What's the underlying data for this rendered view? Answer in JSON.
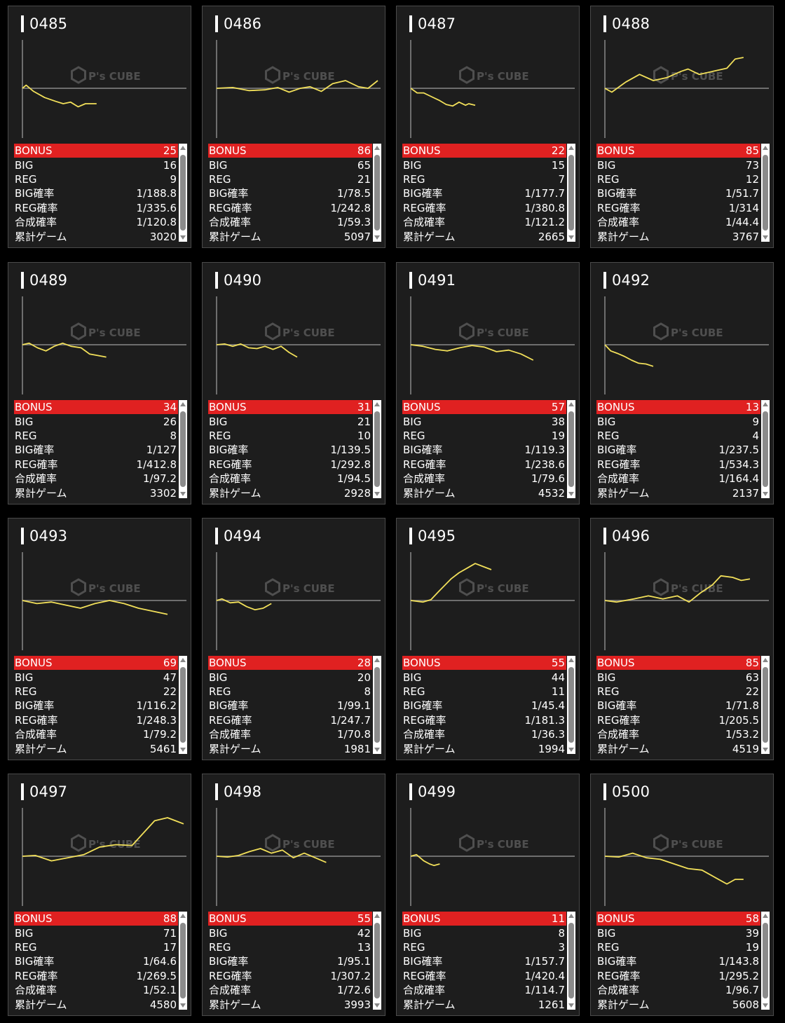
{
  "labels": {
    "bonus": "BONUS",
    "big": "BIG",
    "reg": "REG",
    "big_rate": "BIG確率",
    "reg_rate": "REG確率",
    "combined_rate": "合成確率",
    "total_games": "累計ゲーム"
  },
  "watermark": {
    "brand": "P's CUBE"
  },
  "colors": {
    "line": "#f2e05a",
    "bonus_bar": "#e02121",
    "panel": "#1d1d1d",
    "axis": "#888888"
  },
  "machines": [
    {
      "id": "0485",
      "bonus": "25",
      "big": "16",
      "reg": "9",
      "big_rate": "1/188.8",
      "reg_rate": "1/335.6",
      "combined_rate": "1/120.8",
      "total_games": "3020"
    },
    {
      "id": "0486",
      "bonus": "86",
      "big": "65",
      "reg": "21",
      "big_rate": "1/78.5",
      "reg_rate": "1/242.8",
      "combined_rate": "1/59.3",
      "total_games": "5097"
    },
    {
      "id": "0487",
      "bonus": "22",
      "big": "15",
      "reg": "7",
      "big_rate": "1/177.7",
      "reg_rate": "1/380.8",
      "combined_rate": "1/121.2",
      "total_games": "2665"
    },
    {
      "id": "0488",
      "bonus": "85",
      "big": "73",
      "reg": "12",
      "big_rate": "1/51.7",
      "reg_rate": "1/314",
      "combined_rate": "1/44.4",
      "total_games": "3767"
    },
    {
      "id": "0489",
      "bonus": "34",
      "big": "26",
      "reg": "8",
      "big_rate": "1/127",
      "reg_rate": "1/412.8",
      "combined_rate": "1/97.2",
      "total_games": "3302"
    },
    {
      "id": "0490",
      "bonus": "31",
      "big": "21",
      "reg": "10",
      "big_rate": "1/139.5",
      "reg_rate": "1/292.8",
      "combined_rate": "1/94.5",
      "total_games": "2928"
    },
    {
      "id": "0491",
      "bonus": "57",
      "big": "38",
      "reg": "19",
      "big_rate": "1/119.3",
      "reg_rate": "1/238.6",
      "combined_rate": "1/79.6",
      "total_games": "4532"
    },
    {
      "id": "0492",
      "bonus": "13",
      "big": "9",
      "reg": "4",
      "big_rate": "1/237.5",
      "reg_rate": "1/534.3",
      "combined_rate": "1/164.4",
      "total_games": "2137"
    },
    {
      "id": "0493",
      "bonus": "69",
      "big": "47",
      "reg": "22",
      "big_rate": "1/116.2",
      "reg_rate": "1/248.3",
      "combined_rate": "1/79.2",
      "total_games": "5461"
    },
    {
      "id": "0494",
      "bonus": "28",
      "big": "20",
      "reg": "8",
      "big_rate": "1/99.1",
      "reg_rate": "1/247.7",
      "combined_rate": "1/70.8",
      "total_games": "1981"
    },
    {
      "id": "0495",
      "bonus": "55",
      "big": "44",
      "reg": "11",
      "big_rate": "1/45.4",
      "reg_rate": "1/181.3",
      "combined_rate": "1/36.3",
      "total_games": "1994"
    },
    {
      "id": "0496",
      "bonus": "85",
      "big": "63",
      "reg": "22",
      "big_rate": "1/71.8",
      "reg_rate": "1/205.5",
      "combined_rate": "1/53.2",
      "total_games": "4519"
    },
    {
      "id": "0497",
      "bonus": "88",
      "big": "71",
      "reg": "17",
      "big_rate": "1/64.6",
      "reg_rate": "1/269.5",
      "combined_rate": "1/52.1",
      "total_games": "4580"
    },
    {
      "id": "0498",
      "bonus": "55",
      "big": "42",
      "reg": "13",
      "big_rate": "1/95.1",
      "reg_rate": "1/307.2",
      "combined_rate": "1/72.6",
      "total_games": "3993"
    },
    {
      "id": "0499",
      "bonus": "11",
      "big": "8",
      "reg": "3",
      "big_rate": "1/157.7",
      "reg_rate": "1/420.4",
      "combined_rate": "1/114.7",
      "total_games": "1261"
    },
    {
      "id": "0500",
      "bonus": "58",
      "big": "39",
      "reg": "19",
      "big_rate": "1/143.8",
      "reg_rate": "1/295.2",
      "combined_rate": "1/96.7",
      "total_games": "5608"
    }
  ],
  "chart_data": {
    "type": "line",
    "description_of_units": "cumulative medal difference vs game progress; no printed axes (units unknown, shape only)",
    "series": [
      {
        "machine": "0485",
        "points": [
          [
            0,
            0
          ],
          [
            0.05,
            4
          ],
          [
            0.15,
            -4
          ],
          [
            0.3,
            -12
          ],
          [
            0.45,
            -17
          ],
          [
            0.55,
            -20
          ],
          [
            0.65,
            -18
          ],
          [
            0.75,
            -24
          ],
          [
            0.85,
            -20
          ],
          [
            1,
            -20
          ]
        ]
      },
      {
        "machine": "0486",
        "points": [
          [
            0,
            0
          ],
          [
            0.1,
            1
          ],
          [
            0.2,
            -3
          ],
          [
            0.3,
            -2
          ],
          [
            0.38,
            1
          ],
          [
            0.45,
            -5
          ],
          [
            0.52,
            0
          ],
          [
            0.58,
            2
          ],
          [
            0.65,
            -4
          ],
          [
            0.72,
            6
          ],
          [
            0.8,
            10
          ],
          [
            0.88,
            2
          ],
          [
            0.94,
            0
          ],
          [
            1,
            10
          ]
        ]
      },
      {
        "machine": "0487",
        "points": [
          [
            0,
            0
          ],
          [
            0.1,
            -6
          ],
          [
            0.2,
            -6
          ],
          [
            0.3,
            -10
          ],
          [
            0.45,
            -16
          ],
          [
            0.55,
            -21
          ],
          [
            0.65,
            -23
          ],
          [
            0.75,
            -18
          ],
          [
            0.85,
            -22
          ],
          [
            0.9,
            -20
          ],
          [
            1,
            -22
          ]
        ]
      },
      {
        "machine": "0488",
        "points": [
          [
            0,
            0
          ],
          [
            0.05,
            -5
          ],
          [
            0.15,
            8
          ],
          [
            0.25,
            18
          ],
          [
            0.35,
            10
          ],
          [
            0.45,
            14
          ],
          [
            0.55,
            22
          ],
          [
            0.6,
            25
          ],
          [
            0.68,
            18
          ],
          [
            0.78,
            22
          ],
          [
            0.88,
            26
          ],
          [
            0.94,
            38
          ],
          [
            1,
            40
          ]
        ]
      },
      {
        "machine": "0489",
        "points": [
          [
            0,
            0
          ],
          [
            0.08,
            2
          ],
          [
            0.18,
            -4
          ],
          [
            0.28,
            -8
          ],
          [
            0.38,
            -2
          ],
          [
            0.48,
            2
          ],
          [
            0.58,
            -2
          ],
          [
            0.7,
            -4
          ],
          [
            0.8,
            -12
          ],
          [
            0.9,
            -14
          ],
          [
            1,
            -16
          ]
        ]
      },
      {
        "machine": "0490",
        "points": [
          [
            0,
            0
          ],
          [
            0.1,
            1
          ],
          [
            0.2,
            -2
          ],
          [
            0.3,
            1
          ],
          [
            0.4,
            -4
          ],
          [
            0.5,
            -5
          ],
          [
            0.6,
            -2
          ],
          [
            0.7,
            -6
          ],
          [
            0.8,
            -2
          ],
          [
            0.9,
            -10
          ],
          [
            1,
            -16
          ]
        ]
      },
      {
        "machine": "0491",
        "points": [
          [
            0,
            0
          ],
          [
            0.1,
            -2
          ],
          [
            0.2,
            -6
          ],
          [
            0.3,
            -8
          ],
          [
            0.4,
            -4
          ],
          [
            0.5,
            -1
          ],
          [
            0.6,
            -3
          ],
          [
            0.7,
            -9
          ],
          [
            0.8,
            -7
          ],
          [
            0.9,
            -12
          ],
          [
            1,
            -20
          ]
        ]
      },
      {
        "machine": "0492",
        "points": [
          [
            0,
            0
          ],
          [
            0.12,
            -8
          ],
          [
            0.25,
            -11
          ],
          [
            0.4,
            -15
          ],
          [
            0.55,
            -20
          ],
          [
            0.7,
            -24
          ],
          [
            0.85,
            -25
          ],
          [
            1,
            -28
          ]
        ]
      },
      {
        "machine": "0493",
        "points": [
          [
            0,
            0
          ],
          [
            0.1,
            -4
          ],
          [
            0.2,
            -2
          ],
          [
            0.3,
            -6
          ],
          [
            0.4,
            -10
          ],
          [
            0.5,
            -4
          ],
          [
            0.6,
            0
          ],
          [
            0.7,
            -4
          ],
          [
            0.8,
            -10
          ],
          [
            0.9,
            -14
          ],
          [
            1,
            -18
          ]
        ]
      },
      {
        "machine": "0494",
        "points": [
          [
            0,
            0
          ],
          [
            0.1,
            2
          ],
          [
            0.25,
            -3
          ],
          [
            0.4,
            -2
          ],
          [
            0.55,
            -8
          ],
          [
            0.7,
            -12
          ],
          [
            0.85,
            -10
          ],
          [
            1,
            -4
          ]
        ]
      },
      {
        "machine": "0495",
        "points": [
          [
            0,
            0
          ],
          [
            0.15,
            -2
          ],
          [
            0.25,
            1
          ],
          [
            0.35,
            12
          ],
          [
            0.5,
            28
          ],
          [
            0.6,
            36
          ],
          [
            0.7,
            42
          ],
          [
            0.8,
            48
          ],
          [
            0.9,
            44
          ],
          [
            1,
            40
          ]
        ]
      },
      {
        "machine": "0496",
        "points": [
          [
            0,
            0
          ],
          [
            0.08,
            -2
          ],
          [
            0.2,
            2
          ],
          [
            0.3,
            6
          ],
          [
            0.4,
            2
          ],
          [
            0.5,
            6
          ],
          [
            0.58,
            -2
          ],
          [
            0.66,
            10
          ],
          [
            0.74,
            20
          ],
          [
            0.8,
            32
          ],
          [
            0.88,
            30
          ],
          [
            0.94,
            26
          ],
          [
            1,
            28
          ]
        ]
      },
      {
        "machine": "0497",
        "points": [
          [
            0,
            0
          ],
          [
            0.08,
            1
          ],
          [
            0.18,
            -6
          ],
          [
            0.28,
            -2
          ],
          [
            0.38,
            2
          ],
          [
            0.48,
            12
          ],
          [
            0.58,
            15
          ],
          [
            0.68,
            14
          ],
          [
            0.75,
            30
          ],
          [
            0.82,
            46
          ],
          [
            0.9,
            50
          ],
          [
            1,
            42
          ]
        ]
      },
      {
        "machine": "0498",
        "points": [
          [
            0,
            0
          ],
          [
            0.1,
            -1
          ],
          [
            0.2,
            1
          ],
          [
            0.3,
            6
          ],
          [
            0.4,
            10
          ],
          [
            0.5,
            4
          ],
          [
            0.6,
            8
          ],
          [
            0.7,
            -2
          ],
          [
            0.8,
            4
          ],
          [
            0.9,
            -2
          ],
          [
            1,
            -8
          ]
        ]
      },
      {
        "machine": "0499",
        "points": [
          [
            0,
            0
          ],
          [
            0.2,
            2
          ],
          [
            0.45,
            -6
          ],
          [
            0.65,
            -10
          ],
          [
            0.8,
            -12
          ],
          [
            1,
            -10
          ]
        ]
      },
      {
        "machine": "0500",
        "points": [
          [
            0,
            0
          ],
          [
            0.1,
            -1
          ],
          [
            0.2,
            4
          ],
          [
            0.3,
            -2
          ],
          [
            0.4,
            -4
          ],
          [
            0.5,
            -10
          ],
          [
            0.6,
            -16
          ],
          [
            0.7,
            -18
          ],
          [
            0.8,
            -28
          ],
          [
            0.88,
            -36
          ],
          [
            0.94,
            -30
          ],
          [
            1,
            -30
          ]
        ]
      }
    ]
  }
}
